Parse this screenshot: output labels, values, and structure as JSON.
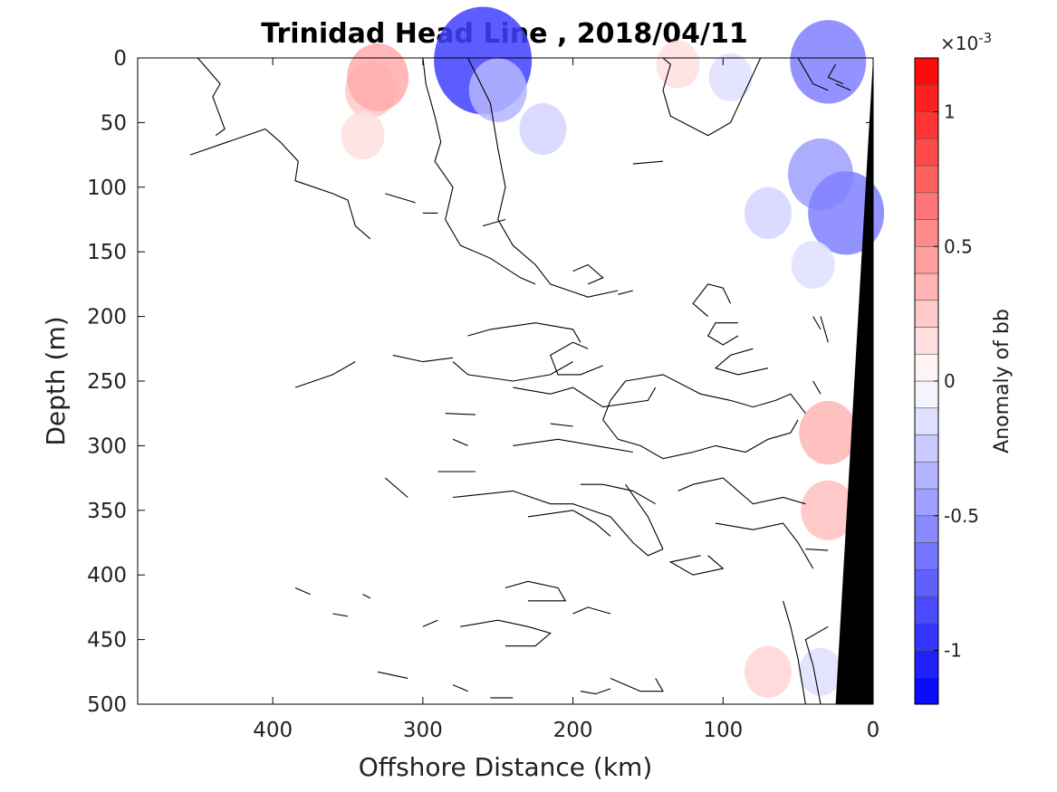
{
  "chart_data": {
    "type": "heatmap",
    "title": "Trinidad Head Line , 2018/04/11",
    "xlabel": "Offshore Distance (km)",
    "ylabel": "Depth (m)",
    "xlim": [
      490,
      0
    ],
    "ylim": [
      0,
      500
    ],
    "x_reversed": true,
    "y_reversed": true,
    "x_ticks": [
      400,
      300,
      200,
      100,
      0
    ],
    "x_tick_labels": [
      "400",
      "300",
      "200",
      "100",
      "0"
    ],
    "y_ticks": [
      0,
      50,
      100,
      150,
      200,
      250,
      300,
      350,
      400,
      450,
      500
    ],
    "y_tick_labels": [
      "0",
      "50",
      "100",
      "150",
      "200",
      "250",
      "300",
      "350",
      "400",
      "450",
      "500"
    ],
    "colorbar": {
      "label": "Anomaly of bb",
      "exponent_label": "×10",
      "exponent_power": "-3",
      "range": [
        -1.2,
        1.2
      ],
      "levels": 24,
      "ticks": [
        1,
        0.5,
        0,
        -0.5,
        -1
      ],
      "tick_labels": [
        "1",
        "0.5",
        "0",
        "-0.5",
        "-1"
      ],
      "neg_color": "#0000ff",
      "pos_color": "#ff0000",
      "mid_color": "#ffffff"
    },
    "anomaly_patches": [
      {
        "x": 335,
        "y": 25,
        "value": 0.25
      },
      {
        "x": 330,
        "y": 15,
        "value": 0.4
      },
      {
        "x": 340,
        "y": 60,
        "value": 0.15
      },
      {
        "x": 260,
        "y": 2,
        "value": -0.9
      },
      {
        "x": 250,
        "y": 25,
        "value": -0.35
      },
      {
        "x": 220,
        "y": 55,
        "value": -0.2
      },
      {
        "x": 30,
        "y": 3,
        "value": -0.6
      },
      {
        "x": 70,
        "y": 120,
        "value": -0.2
      },
      {
        "x": 35,
        "y": 90,
        "value": -0.45
      },
      {
        "x": 18,
        "y": 120,
        "value": -0.6
      },
      {
        "x": 40,
        "y": 160,
        "value": -0.15
      },
      {
        "x": 95,
        "y": 15,
        "value": -0.15
      },
      {
        "x": 130,
        "y": 5,
        "value": 0.15
      },
      {
        "x": 30,
        "y": 290,
        "value": 0.35
      },
      {
        "x": 30,
        "y": 350,
        "value": 0.3
      },
      {
        "x": 35,
        "y": 475,
        "value": -0.15
      },
      {
        "x": 70,
        "y": 475,
        "value": 0.2
      }
    ],
    "bathymetry_color": "#000000",
    "bathymetry": [
      [
        0,
        0
      ],
      [
        25,
        500
      ],
      [
        0,
        500
      ]
    ],
    "zero_contours": [
      [
        [
          370,
          0
        ],
        [
          385,
          0
        ]
      ],
      [
        [
          450,
          0
        ],
        [
          435,
          20
        ],
        [
          440,
          30
        ],
        [
          432,
          55
        ],
        [
          438,
          60
        ]
      ],
      [
        [
          455,
          75
        ],
        [
          430,
          65
        ],
        [
          405,
          55
        ],
        [
          395,
          65
        ],
        [
          383,
          80
        ],
        [
          385,
          95
        ],
        [
          360,
          105
        ],
        [
          350,
          110
        ],
        [
          345,
          130
        ],
        [
          335,
          140
        ]
      ],
      [
        [
          300,
          0
        ],
        [
          298,
          20
        ],
        [
          292,
          45
        ],
        [
          288,
          65
        ],
        [
          292,
          80
        ],
        [
          280,
          100
        ],
        [
          285,
          125
        ],
        [
          275,
          145
        ],
        [
          255,
          155
        ],
        [
          235,
          170
        ],
        [
          225,
          175
        ]
      ],
      [
        [
          270,
          0
        ],
        [
          255,
          35
        ],
        [
          250,
          70
        ],
        [
          245,
          100
        ],
        [
          250,
          125
        ],
        [
          240,
          145
        ],
        [
          225,
          160
        ],
        [
          215,
          175
        ],
        [
          190,
          185
        ],
        [
          170,
          180
        ]
      ],
      [
        [
          75,
          0
        ],
        [
          85,
          25
        ],
        [
          95,
          50
        ],
        [
          110,
          60
        ],
        [
          135,
          45
        ],
        [
          140,
          25
        ],
        [
          135,
          5
        ],
        [
          140,
          0
        ]
      ],
      [
        [
          140,
          80
        ],
        [
          160,
          82
        ]
      ],
      [
        [
          325,
          105
        ],
        [
          305,
          112
        ]
      ],
      [
        [
          300,
          120
        ],
        [
          290,
          120
        ]
      ],
      [
        [
          260,
          130
        ],
        [
          245,
          125
        ]
      ],
      [
        [
          200,
          165
        ],
        [
          190,
          160
        ],
        [
          180,
          170
        ],
        [
          190,
          175
        ]
      ],
      [
        [
          160,
          180
        ],
        [
          170,
          183
        ]
      ],
      [
        [
          95,
          190
        ],
        [
          100,
          178
        ],
        [
          110,
          175
        ],
        [
          120,
          190
        ],
        [
          110,
          200
        ]
      ],
      [
        [
          90,
          205
        ],
        [
          105,
          205
        ],
        [
          110,
          215
        ],
        [
          100,
          222
        ],
        [
          90,
          215
        ]
      ],
      [
        [
          80,
          225
        ],
        [
          95,
          230
        ],
        [
          105,
          240
        ],
        [
          90,
          245
        ],
        [
          70,
          240
        ]
      ],
      [
        [
          190,
          225
        ],
        [
          200,
          220
        ],
        [
          215,
          230
        ],
        [
          210,
          245
        ],
        [
          195,
          245
        ],
        [
          180,
          238
        ]
      ],
      [
        [
          270,
          215
        ],
        [
          255,
          210
        ],
        [
          225,
          205
        ],
        [
          200,
          210
        ],
        [
          195,
          220
        ]
      ],
      [
        [
          320,
          230
        ],
        [
          300,
          235
        ],
        [
          280,
          232
        ]
      ],
      [
        [
          345,
          235
        ],
        [
          360,
          245
        ],
        [
          385,
          255
        ]
      ],
      [
        [
          280,
          235
        ],
        [
          270,
          245
        ],
        [
          240,
          250
        ],
        [
          215,
          245
        ],
        [
          200,
          235
        ]
      ],
      [
        [
          240,
          255
        ],
        [
          215,
          260
        ],
        [
          200,
          255
        ],
        [
          180,
          270
        ],
        [
          150,
          265
        ],
        [
          145,
          255
        ]
      ],
      [
        [
          285,
          275
        ],
        [
          265,
          276
        ]
      ],
      [
        [
          200,
          285
        ],
        [
          215,
          283
        ]
      ],
      [
        [
          165,
          250
        ],
        [
          140,
          245
        ],
        [
          115,
          260
        ],
        [
          95,
          265
        ],
        [
          80,
          270
        ],
        [
          65,
          265
        ],
        [
          55,
          260
        ],
        [
          45,
          275
        ]
      ],
      [
        [
          165,
          250
        ],
        [
          175,
          265
        ],
        [
          180,
          280
        ],
        [
          170,
          295
        ],
        [
          155,
          300
        ],
        [
          140,
          310
        ],
        [
          120,
          305
        ],
        [
          105,
          300
        ],
        [
          85,
          305
        ],
        [
          70,
          295
        ],
        [
          55,
          290
        ],
        [
          50,
          280
        ]
      ],
      [
        [
          280,
          295
        ],
        [
          270,
          300
        ]
      ],
      [
        [
          240,
          300
        ],
        [
          210,
          295
        ],
        [
          185,
          300
        ],
        [
          160,
          305
        ]
      ],
      [
        [
          290,
          320
        ],
        [
          265,
          320
        ]
      ],
      [
        [
          325,
          325
        ],
        [
          310,
          340
        ]
      ],
      [
        [
          195,
          330
        ],
        [
          180,
          330
        ],
        [
          160,
          335
        ],
        [
          145,
          345
        ]
      ],
      [
        [
          280,
          340
        ],
        [
          240,
          335
        ],
        [
          215,
          345
        ],
        [
          200,
          345
        ],
        [
          175,
          355
        ],
        [
          160,
          375
        ],
        [
          150,
          385
        ],
        [
          140,
          380
        ]
      ],
      [
        [
          230,
          355
        ],
        [
          200,
          350
        ],
        [
          185,
          360
        ],
        [
          175,
          370
        ]
      ],
      [
        [
          140,
          380
        ],
        [
          150,
          355
        ],
        [
          165,
          330
        ]
      ],
      [
        [
          130,
          335
        ],
        [
          120,
          330
        ],
        [
          100,
          325
        ],
        [
          85,
          340
        ],
        [
          80,
          345
        ],
        [
          60,
          340
        ],
        [
          45,
          345
        ]
      ],
      [
        [
          105,
          360
        ],
        [
          80,
          365
        ],
        [
          60,
          360
        ],
        [
          50,
          375
        ],
        [
          40,
          395
        ]
      ],
      [
        [
          110,
          385
        ],
        [
          100,
          395
        ],
        [
          120,
          400
        ],
        [
          135,
          390
        ],
        [
          115,
          385
        ]
      ],
      [
        [
          245,
          410
        ],
        [
          230,
          405
        ],
        [
          210,
          410
        ],
        [
          205,
          420
        ],
        [
          230,
          420
        ]
      ],
      [
        [
          200,
          430
        ],
        [
          190,
          425
        ],
        [
          175,
          430
        ]
      ],
      [
        [
          300,
          440
        ],
        [
          290,
          435
        ]
      ],
      [
        [
          275,
          440
        ],
        [
          250,
          435
        ],
        [
          230,
          440
        ],
        [
          215,
          445
        ],
        [
          225,
          455
        ],
        [
          245,
          455
        ]
      ],
      [
        [
          330,
          475
        ],
        [
          310,
          480
        ]
      ],
      [
        [
          280,
          485
        ],
        [
          270,
          490
        ]
      ],
      [
        [
          255,
          495
        ],
        [
          240,
          495
        ]
      ],
      [
        [
          175,
          480
        ],
        [
          165,
          485
        ],
        [
          155,
          490
        ],
        [
          140,
          490
        ],
        [
          145,
          480
        ]
      ],
      [
        [
          195,
          490
        ],
        [
          185,
          492
        ],
        [
          175,
          488
        ]
      ],
      [
        [
          385,
          410
        ],
        [
          375,
          415
        ]
      ],
      [
        [
          360,
          430
        ],
        [
          350,
          432
        ]
      ],
      [
        [
          340,
          415
        ],
        [
          335,
          418
        ]
      ],
      [
        [
          50,
          0
        ],
        [
          45,
          10
        ],
        [
          40,
          20
        ],
        [
          30,
          25
        ]
      ],
      [
        [
          25,
          20
        ],
        [
          15,
          25
        ]
      ],
      [
        [
          25,
          5
        ],
        [
          30,
          15
        ],
        [
          20,
          20
        ]
      ],
      [
        [
          30,
          440
        ],
        [
          45,
          450
        ],
        [
          40,
          470
        ],
        [
          35,
          500
        ]
      ],
      [
        [
          60,
          420
        ],
        [
          55,
          440
        ],
        [
          50,
          465
        ],
        [
          45,
          500
        ]
      ],
      [
        [
          45,
          380
        ],
        [
          30,
          381
        ]
      ],
      [
        [
          35,
          200
        ],
        [
          30,
          220
        ]
      ],
      [
        [
          40,
          250
        ],
        [
          35,
          260
        ]
      ],
      [
        [
          40,
          200
        ],
        [
          35,
          210
        ]
      ]
    ]
  }
}
